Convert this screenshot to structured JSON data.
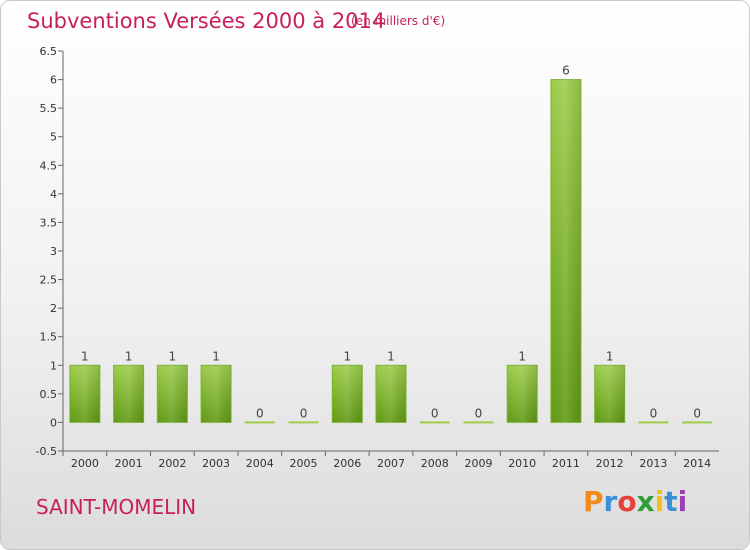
{
  "header": {
    "title": "Subventions Versées 2000 à 2014",
    "unit_note": "(en milliers d'€)"
  },
  "footer": {
    "commune": "SAINT-MOMELIN",
    "logo_text": "Proxiti"
  },
  "colors": {
    "accent": "#c71f5d",
    "bar_light": "#9ccc4a",
    "bar_dark": "#5f9912",
    "logo_letters": [
      "#f08a1c",
      "#3a8fd6",
      "#e8403a",
      "#2f9f3a",
      "#f2c11c",
      "#3a8fd6",
      "#9b3fb5"
    ]
  },
  "chart_data": {
    "type": "bar",
    "categories": [
      "2000",
      "2001",
      "2002",
      "2003",
      "2004",
      "2005",
      "2006",
      "2007",
      "2008",
      "2009",
      "2010",
      "2011",
      "2012",
      "2013",
      "2014"
    ],
    "values": [
      1,
      1,
      1,
      1,
      0,
      0,
      1,
      1,
      0,
      0,
      1,
      6,
      1,
      0,
      0
    ],
    "data_labels": [
      "1",
      "1",
      "1",
      "1",
      "0",
      "0",
      "1",
      "1",
      "0",
      "0",
      "1",
      "6",
      "1",
      "0",
      "0"
    ],
    "yticks": [
      "-0.5",
      "0",
      "0.5",
      "1",
      "1.5",
      "2",
      "2.5",
      "3",
      "3.5",
      "4",
      "4.5",
      "5",
      "5.5",
      "6",
      "6.5"
    ],
    "ylim": [
      -0.5,
      6.5
    ],
    "grid": false,
    "legend": "none"
  }
}
